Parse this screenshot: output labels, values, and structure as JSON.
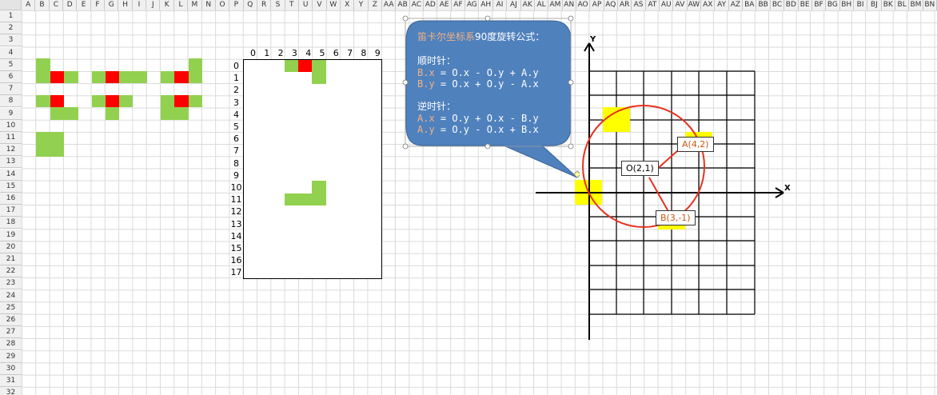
{
  "spreadsheet": {
    "columns": [
      "A",
      "B",
      "C",
      "D",
      "E",
      "F",
      "G",
      "H",
      "I",
      "J",
      "K",
      "L",
      "M",
      "N",
      "O",
      "P",
      "Q",
      "R",
      "S",
      "T",
      "U",
      "V",
      "W",
      "X",
      "Y",
      "Z",
      "AA",
      "AB",
      "AC",
      "AD",
      "AE",
      "AF",
      "AG",
      "AH",
      "AI",
      "AJ",
      "AK",
      "AL",
      "AM",
      "AN",
      "AO",
      "AP",
      "AQ",
      "AR",
      "AS",
      "AT",
      "AU",
      "AV",
      "AW",
      "AX",
      "AY",
      "AZ",
      "BA",
      "BB",
      "BC",
      "BD",
      "BE",
      "BF",
      "BG",
      "BH",
      "BI",
      "BJ",
      "BK",
      "BL",
      "BM",
      "BN"
    ],
    "rows": [
      "1",
      "2",
      "3",
      "4",
      "5",
      "6",
      "7",
      "8",
      "9",
      "10",
      "11",
      "12",
      "13",
      "14",
      "15",
      "16",
      "17",
      "18",
      "19",
      "20",
      "21",
      "22",
      "23",
      "24",
      "25",
      "26",
      "27",
      "28",
      "29",
      "30",
      "31",
      "32"
    ]
  },
  "board": {
    "col_labels": [
      "0",
      "1",
      "2",
      "3",
      "4",
      "5",
      "6",
      "7",
      "8",
      "9"
    ],
    "row_labels": [
      "0",
      "1",
      "2",
      "3",
      "4",
      "5",
      "6",
      "7",
      "8",
      "9",
      "10",
      "11",
      "12",
      "13",
      "14",
      "15",
      "16",
      "17"
    ]
  },
  "callout": {
    "title_highlight": "笛卡尔坐标系",
    "title_rest": "90度旋转公式：",
    "cw_heading": "顺时针：",
    "cw_line1_pre": "B.x",
    "cw_line1_post": " = O.x - O.y + A.y",
    "cw_line2_pre": "B.y",
    "cw_line2_post": " = O.x + O.y - A.x",
    "ccw_heading": "逆时针：",
    "ccw_line1_pre": "A.x",
    "ccw_line1_post": " = O.y + O.x - B.y",
    "ccw_line2_pre": "A.y",
    "ccw_line2_post": " = O.y - O.x + B.x",
    "fill_color": "#4f81bd",
    "highlight_color": "#f4b183"
  },
  "coordinate_plane": {
    "x_axis_label": "X",
    "y_axis_label": "Y",
    "point_a": "A(4,2)",
    "point_o": "O(2,1)",
    "point_b": "B(3,-1)",
    "circle_color": "#ff0000",
    "marker_color": "#ffff00"
  },
  "colors": {
    "tile_green": "#92d050",
    "tile_red": "#ff0000"
  }
}
